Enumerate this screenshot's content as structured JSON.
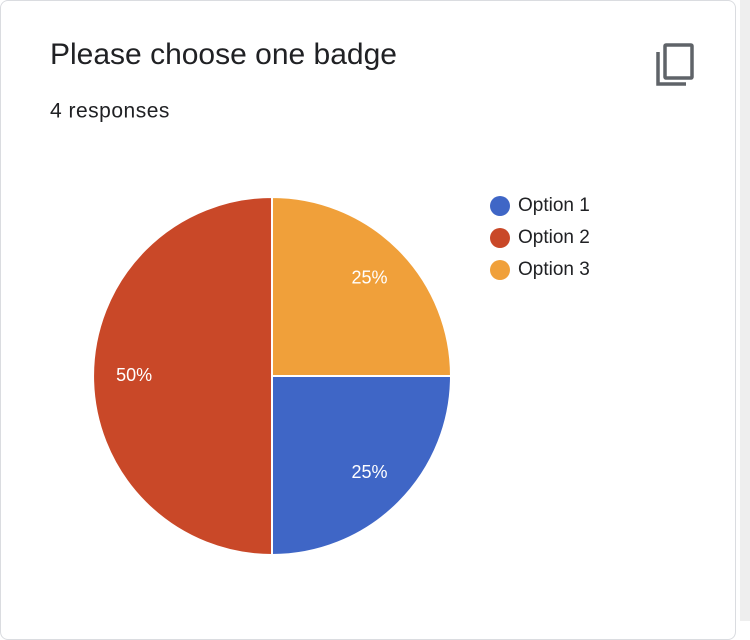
{
  "chart_data": {
    "type": "pie",
    "title": "Please choose one badge",
    "subtitle": "4 responses",
    "categories": [
      "Option 1",
      "Option 2",
      "Option 3"
    ],
    "values": [
      25,
      50,
      25
    ],
    "value_labels": [
      "25%",
      "50%",
      "25%"
    ],
    "colors": [
      "#3f66c6",
      "#c94828",
      "#f0a03a"
    ]
  }
}
